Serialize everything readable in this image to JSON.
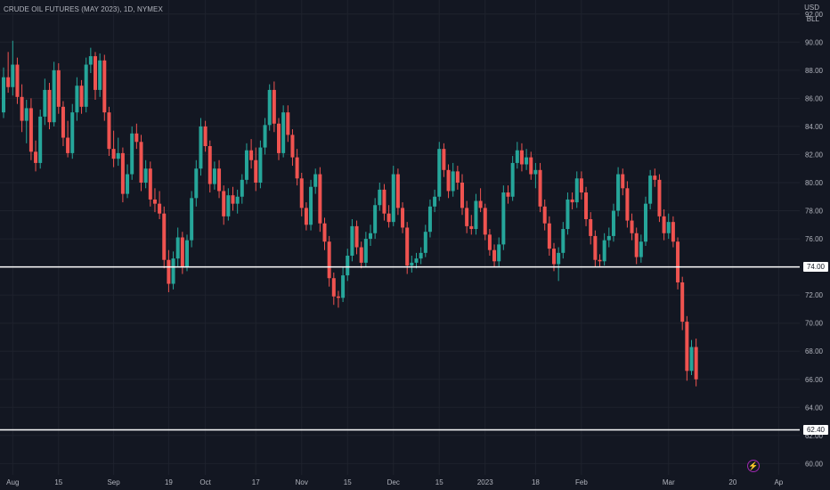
{
  "title": "CRUDE OIL FUTURES (MAY 2023), 1D, NYMEX",
  "currency": "USD",
  "unit": "BLL",
  "colors": {
    "up": "#26a69a",
    "down": "#ef5350",
    "grid": "#1e222d",
    "text": "#b2b5be",
    "level": "#ffffff",
    "event": "#9c27b0"
  },
  "event_icon": "lightning-bolt-icon",
  "chart_data": {
    "type": "candlestick",
    "title": "CRUDE OIL FUTURES (MAY 2023), 1D, NYMEX",
    "ylabel": "USD / BLL",
    "ylim": [
      59.2,
      93.0
    ],
    "yticks": [
      92,
      90,
      88,
      86,
      84,
      82,
      80,
      78,
      76,
      74,
      72,
      70,
      68,
      66,
      64,
      62,
      60
    ],
    "ytick_labels": [
      "92.00",
      "90.00",
      "88.00",
      "86.00",
      "84.00",
      "82.00",
      "80.00",
      "78.00",
      "76.00",
      "74.00",
      "72.00",
      "70.00",
      "68.00",
      "66.00",
      "64.00",
      "62.00",
      "60.00"
    ],
    "xticks": [
      {
        "label": "Aug",
        "index": 2
      },
      {
        "label": "15",
        "index": 12
      },
      {
        "label": "Sep",
        "index": 24
      },
      {
        "label": "19",
        "index": 36
      },
      {
        "label": "Oct",
        "index": 44
      },
      {
        "label": "17",
        "index": 55
      },
      {
        "label": "Nov",
        "index": 65
      },
      {
        "label": "15",
        "index": 75
      },
      {
        "label": "Dec",
        "index": 85
      },
      {
        "label": "15",
        "index": 95
      },
      {
        "label": "2023",
        "index": 105
      },
      {
        "label": "18",
        "index": 116
      },
      {
        "label": "Feb",
        "index": 126
      },
      {
        "label": "Mar",
        "index": 145
      },
      {
        "label": "20",
        "index": 159
      },
      {
        "label": "Ap",
        "index": 169
      }
    ],
    "levels": [
      {
        "value": 74.0,
        "label": "74.00"
      },
      {
        "value": 62.4,
        "label": "62.40"
      }
    ],
    "candles": [
      [
        85.0,
        88.2,
        84.6,
        87.5
      ],
      [
        87.5,
        89.3,
        86.4,
        86.8
      ],
      [
        86.8,
        90.1,
        86.2,
        88.4
      ],
      [
        88.4,
        88.9,
        85.6,
        86.1
      ],
      [
        86.1,
        87.0,
        83.6,
        84.4
      ],
      [
        84.4,
        85.9,
        82.8,
        85.3
      ],
      [
        85.3,
        86.0,
        81.6,
        82.2
      ],
      [
        82.2,
        83.0,
        80.8,
        81.4
      ],
      [
        81.4,
        85.2,
        81.0,
        84.7
      ],
      [
        84.7,
        87.4,
        84.1,
        86.6
      ],
      [
        86.6,
        87.1,
        83.8,
        84.3
      ],
      [
        84.3,
        88.6,
        84.0,
        88.0
      ],
      [
        88.0,
        88.5,
        84.9,
        85.4
      ],
      [
        85.4,
        85.8,
        82.6,
        83.2
      ],
      [
        83.2,
        84.4,
        81.8,
        82.1
      ],
      [
        82.1,
        85.6,
        81.7,
        85.0
      ],
      [
        85.0,
        87.5,
        84.4,
        86.9
      ],
      [
        86.9,
        87.3,
        84.9,
        85.4
      ],
      [
        85.4,
        88.9,
        85.0,
        88.4
      ],
      [
        88.4,
        89.6,
        87.8,
        89.0
      ],
      [
        89.0,
        89.3,
        85.9,
        86.6
      ],
      [
        86.6,
        89.2,
        86.1,
        88.7
      ],
      [
        88.7,
        89.1,
        84.4,
        85.0
      ],
      [
        85.0,
        85.4,
        81.9,
        82.4
      ],
      [
        82.4,
        83.7,
        81.1,
        81.7
      ],
      [
        81.7,
        83.2,
        81.2,
        82.1
      ],
      [
        82.1,
        82.5,
        78.6,
        79.2
      ],
      [
        79.2,
        81.3,
        78.9,
        80.6
      ],
      [
        80.6,
        84.0,
        80.2,
        83.5
      ],
      [
        83.5,
        84.2,
        82.4,
        82.9
      ],
      [
        82.9,
        83.4,
        79.4,
        80.0
      ],
      [
        80.0,
        81.6,
        79.6,
        81.0
      ],
      [
        81.0,
        81.5,
        78.3,
        78.8
      ],
      [
        78.8,
        79.6,
        77.9,
        78.5
      ],
      [
        78.5,
        79.4,
        77.4,
        77.8
      ],
      [
        77.8,
        78.3,
        73.9,
        74.5
      ],
      [
        74.5,
        75.2,
        72.2,
        72.8
      ],
      [
        72.8,
        75.1,
        72.4,
        74.6
      ],
      [
        74.6,
        76.8,
        74.0,
        76.1
      ],
      [
        76.1,
        76.5,
        73.5,
        74.0
      ],
      [
        74.0,
        76.3,
        73.7,
        75.9
      ],
      [
        75.9,
        79.4,
        75.4,
        78.9
      ],
      [
        78.9,
        81.6,
        78.3,
        81.0
      ],
      [
        81.0,
        84.6,
        80.5,
        84.0
      ],
      [
        84.0,
        84.4,
        82.2,
        82.6
      ],
      [
        82.6,
        83.0,
        79.3,
        79.9
      ],
      [
        79.9,
        81.5,
        79.5,
        81.0
      ],
      [
        81.0,
        81.6,
        78.9,
        79.4
      ],
      [
        79.4,
        79.8,
        77.0,
        77.6
      ],
      [
        77.6,
        79.6,
        77.3,
        79.1
      ],
      [
        79.1,
        79.7,
        78.0,
        78.5
      ],
      [
        78.5,
        79.5,
        77.8,
        79.0
      ],
      [
        79.0,
        80.6,
        78.5,
        80.2
      ],
      [
        80.2,
        82.8,
        79.9,
        82.3
      ],
      [
        82.3,
        83.1,
        81.0,
        81.6
      ],
      [
        81.6,
        82.5,
        79.4,
        80.0
      ],
      [
        80.0,
        83.0,
        79.6,
        82.5
      ],
      [
        82.5,
        84.6,
        82.0,
        84.1
      ],
      [
        84.1,
        87.0,
        83.7,
        86.6
      ],
      [
        86.6,
        87.2,
        83.6,
        84.2
      ],
      [
        84.2,
        84.6,
        81.6,
        82.1
      ],
      [
        82.1,
        85.5,
        81.8,
        85.0
      ],
      [
        85.0,
        85.5,
        82.9,
        83.4
      ],
      [
        83.4,
        83.8,
        81.2,
        81.8
      ],
      [
        81.8,
        82.4,
        79.8,
        80.3
      ],
      [
        80.3,
        80.7,
        77.6,
        78.2
      ],
      [
        78.2,
        78.6,
        76.6,
        77.0
      ],
      [
        77.0,
        80.2,
        76.6,
        79.7
      ],
      [
        79.7,
        81.0,
        79.2,
        80.6
      ],
      [
        80.6,
        81.1,
        76.5,
        77.1
      ],
      [
        77.1,
        77.5,
        75.2,
        75.8
      ],
      [
        75.8,
        76.2,
        72.6,
        73.2
      ],
      [
        73.2,
        73.6,
        71.3,
        71.9
      ],
      [
        71.9,
        72.3,
        71.1,
        71.8
      ],
      [
        71.8,
        74.0,
        71.5,
        73.4
      ],
      [
        73.4,
        75.3,
        73.0,
        74.8
      ],
      [
        74.8,
        77.4,
        74.4,
        76.9
      ],
      [
        76.9,
        77.3,
        74.9,
        75.4
      ],
      [
        75.4,
        75.8,
        73.9,
        74.3
      ],
      [
        74.3,
        76.5,
        74.0,
        76.0
      ],
      [
        76.0,
        77.0,
        75.5,
        76.4
      ],
      [
        76.4,
        78.9,
        76.0,
        78.4
      ],
      [
        78.4,
        80.0,
        78.0,
        79.5
      ],
      [
        79.5,
        79.9,
        77.3,
        77.8
      ],
      [
        77.8,
        78.4,
        76.8,
        77.2
      ],
      [
        77.2,
        81.2,
        76.9,
        80.6
      ],
      [
        80.6,
        81.0,
        77.7,
        78.2
      ],
      [
        78.2,
        78.6,
        76.4,
        76.8
      ],
      [
        76.8,
        77.2,
        73.5,
        74.1
      ],
      [
        74.1,
        74.8,
        73.6,
        74.3
      ],
      [
        74.3,
        75.0,
        73.9,
        74.6
      ],
      [
        74.6,
        75.4,
        74.2,
        75.0
      ],
      [
        75.0,
        77.0,
        74.7,
        76.5
      ],
      [
        76.5,
        78.8,
        76.1,
        78.3
      ],
      [
        78.3,
        79.5,
        77.9,
        79.0
      ],
      [
        79.0,
        82.9,
        78.7,
        82.4
      ],
      [
        82.4,
        82.8,
        80.4,
        80.9
      ],
      [
        80.9,
        81.3,
        78.9,
        79.4
      ],
      [
        79.4,
        81.4,
        79.0,
        80.8
      ],
      [
        80.8,
        81.2,
        79.5,
        80.0
      ],
      [
        80.0,
        80.6,
        77.7,
        78.2
      ],
      [
        78.2,
        78.7,
        76.4,
        76.9
      ],
      [
        76.9,
        77.7,
        76.3,
        76.7
      ],
      [
        76.7,
        79.2,
        76.3,
        78.7
      ],
      [
        78.7,
        79.6,
        77.9,
        78.2
      ],
      [
        78.2,
        78.5,
        75.9,
        76.3
      ],
      [
        76.3,
        76.7,
        74.8,
        75.2
      ],
      [
        75.2,
        75.6,
        74.0,
        74.4
      ],
      [
        74.4,
        76.1,
        74.0,
        75.6
      ],
      [
        75.6,
        79.8,
        75.2,
        79.3
      ],
      [
        79.3,
        79.8,
        78.5,
        79.0
      ],
      [
        79.0,
        81.9,
        78.7,
        81.4
      ],
      [
        81.4,
        82.9,
        81.0,
        82.3
      ],
      [
        82.3,
        82.8,
        80.8,
        81.3
      ],
      [
        81.3,
        82.4,
        80.9,
        81.8
      ],
      [
        81.8,
        82.2,
        80.2,
        80.6
      ],
      [
        80.6,
        81.4,
        79.6,
        80.9
      ],
      [
        80.9,
        81.4,
        77.9,
        78.3
      ],
      [
        78.3,
        78.8,
        76.6,
        77.1
      ],
      [
        77.1,
        77.6,
        74.8,
        75.3
      ],
      [
        75.3,
        75.7,
        73.7,
        74.2
      ],
      [
        74.2,
        75.4,
        73.0,
        75.0
      ],
      [
        75.0,
        77.2,
        74.6,
        76.7
      ],
      [
        76.7,
        79.3,
        76.3,
        78.8
      ],
      [
        78.8,
        79.3,
        78.1,
        78.6
      ],
      [
        78.6,
        80.8,
        78.2,
        80.3
      ],
      [
        80.3,
        80.8,
        78.8,
        79.3
      ],
      [
        79.3,
        79.7,
        76.9,
        77.4
      ],
      [
        77.4,
        77.9,
        75.6,
        76.2
      ],
      [
        76.2,
        76.6,
        74.0,
        74.5
      ],
      [
        74.5,
        74.9,
        74.0,
        74.4
      ],
      [
        74.4,
        76.4,
        74.1,
        75.9
      ],
      [
        75.9,
        76.8,
        75.4,
        76.2
      ],
      [
        76.2,
        78.5,
        75.8,
        78.0
      ],
      [
        78.0,
        81.1,
        77.6,
        80.6
      ],
      [
        80.6,
        81.0,
        79.1,
        79.6
      ],
      [
        79.6,
        80.1,
        76.8,
        77.3
      ],
      [
        77.3,
        77.8,
        75.9,
        76.4
      ],
      [
        76.4,
        76.8,
        74.2,
        74.7
      ],
      [
        74.7,
        76.3,
        74.3,
        75.8
      ],
      [
        75.8,
        79.0,
        75.5,
        78.5
      ],
      [
        78.5,
        80.9,
        78.1,
        80.5
      ],
      [
        80.5,
        81.0,
        79.7,
        80.2
      ],
      [
        80.2,
        80.6,
        77.2,
        77.6
      ],
      [
        77.6,
        78.1,
        75.9,
        76.4
      ],
      [
        76.4,
        77.8,
        76.0,
        77.2
      ],
      [
        77.2,
        77.6,
        75.4,
        75.8
      ],
      [
        75.8,
        76.1,
        72.4,
        72.9
      ],
      [
        72.9,
        73.3,
        69.5,
        70.1
      ],
      [
        70.1,
        70.5,
        65.9,
        66.6
      ],
      [
        66.6,
        68.8,
        66.3,
        68.3
      ],
      [
        68.3,
        68.9,
        65.5,
        66.0
      ]
    ]
  }
}
